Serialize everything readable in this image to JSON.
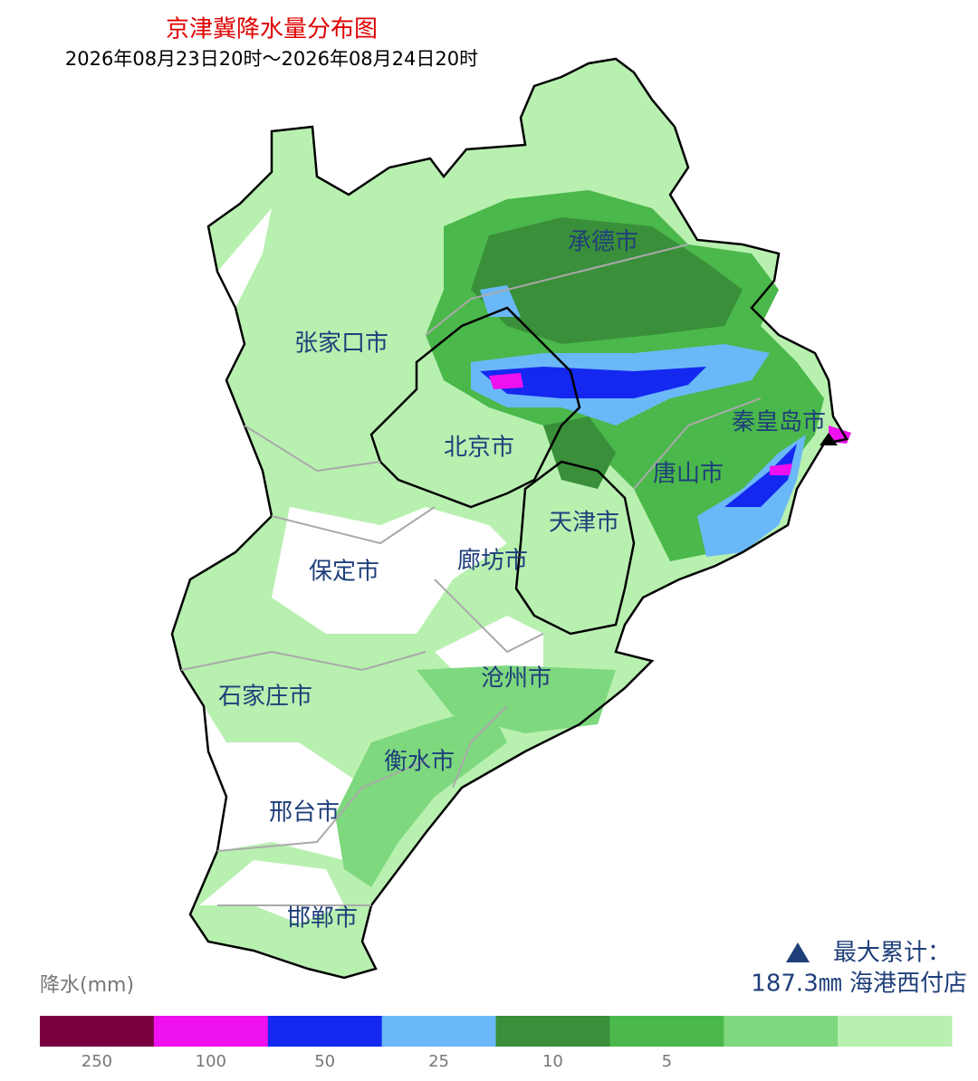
{
  "header": {
    "title": "京津冀降水量分布图",
    "subtitle": "2026年08月23日20时～2026年08月24日20时"
  },
  "cities": [
    "承德市",
    "张家口市",
    "秦皇岛市",
    "北京市",
    "唐山市",
    "天津市",
    "保定市",
    "廊坊市",
    "沧州市",
    "石家庄市",
    "衡水市",
    "邢台市",
    "邯郸市"
  ],
  "max_note": {
    "label": "最大累计：",
    "value": "187.3㎜ 海港西付店"
  },
  "legend": {
    "title": "降水(mm)",
    "colors": [
      "#7a0040",
      "#ee10ee",
      "#1428f0",
      "#6bb8f8",
      "#3a8f3a",
      "#4ab84a",
      "#7ed87e",
      "#b8f0b0"
    ],
    "ticks": [
      250,
      100,
      50,
      25,
      10,
      5
    ]
  }
}
